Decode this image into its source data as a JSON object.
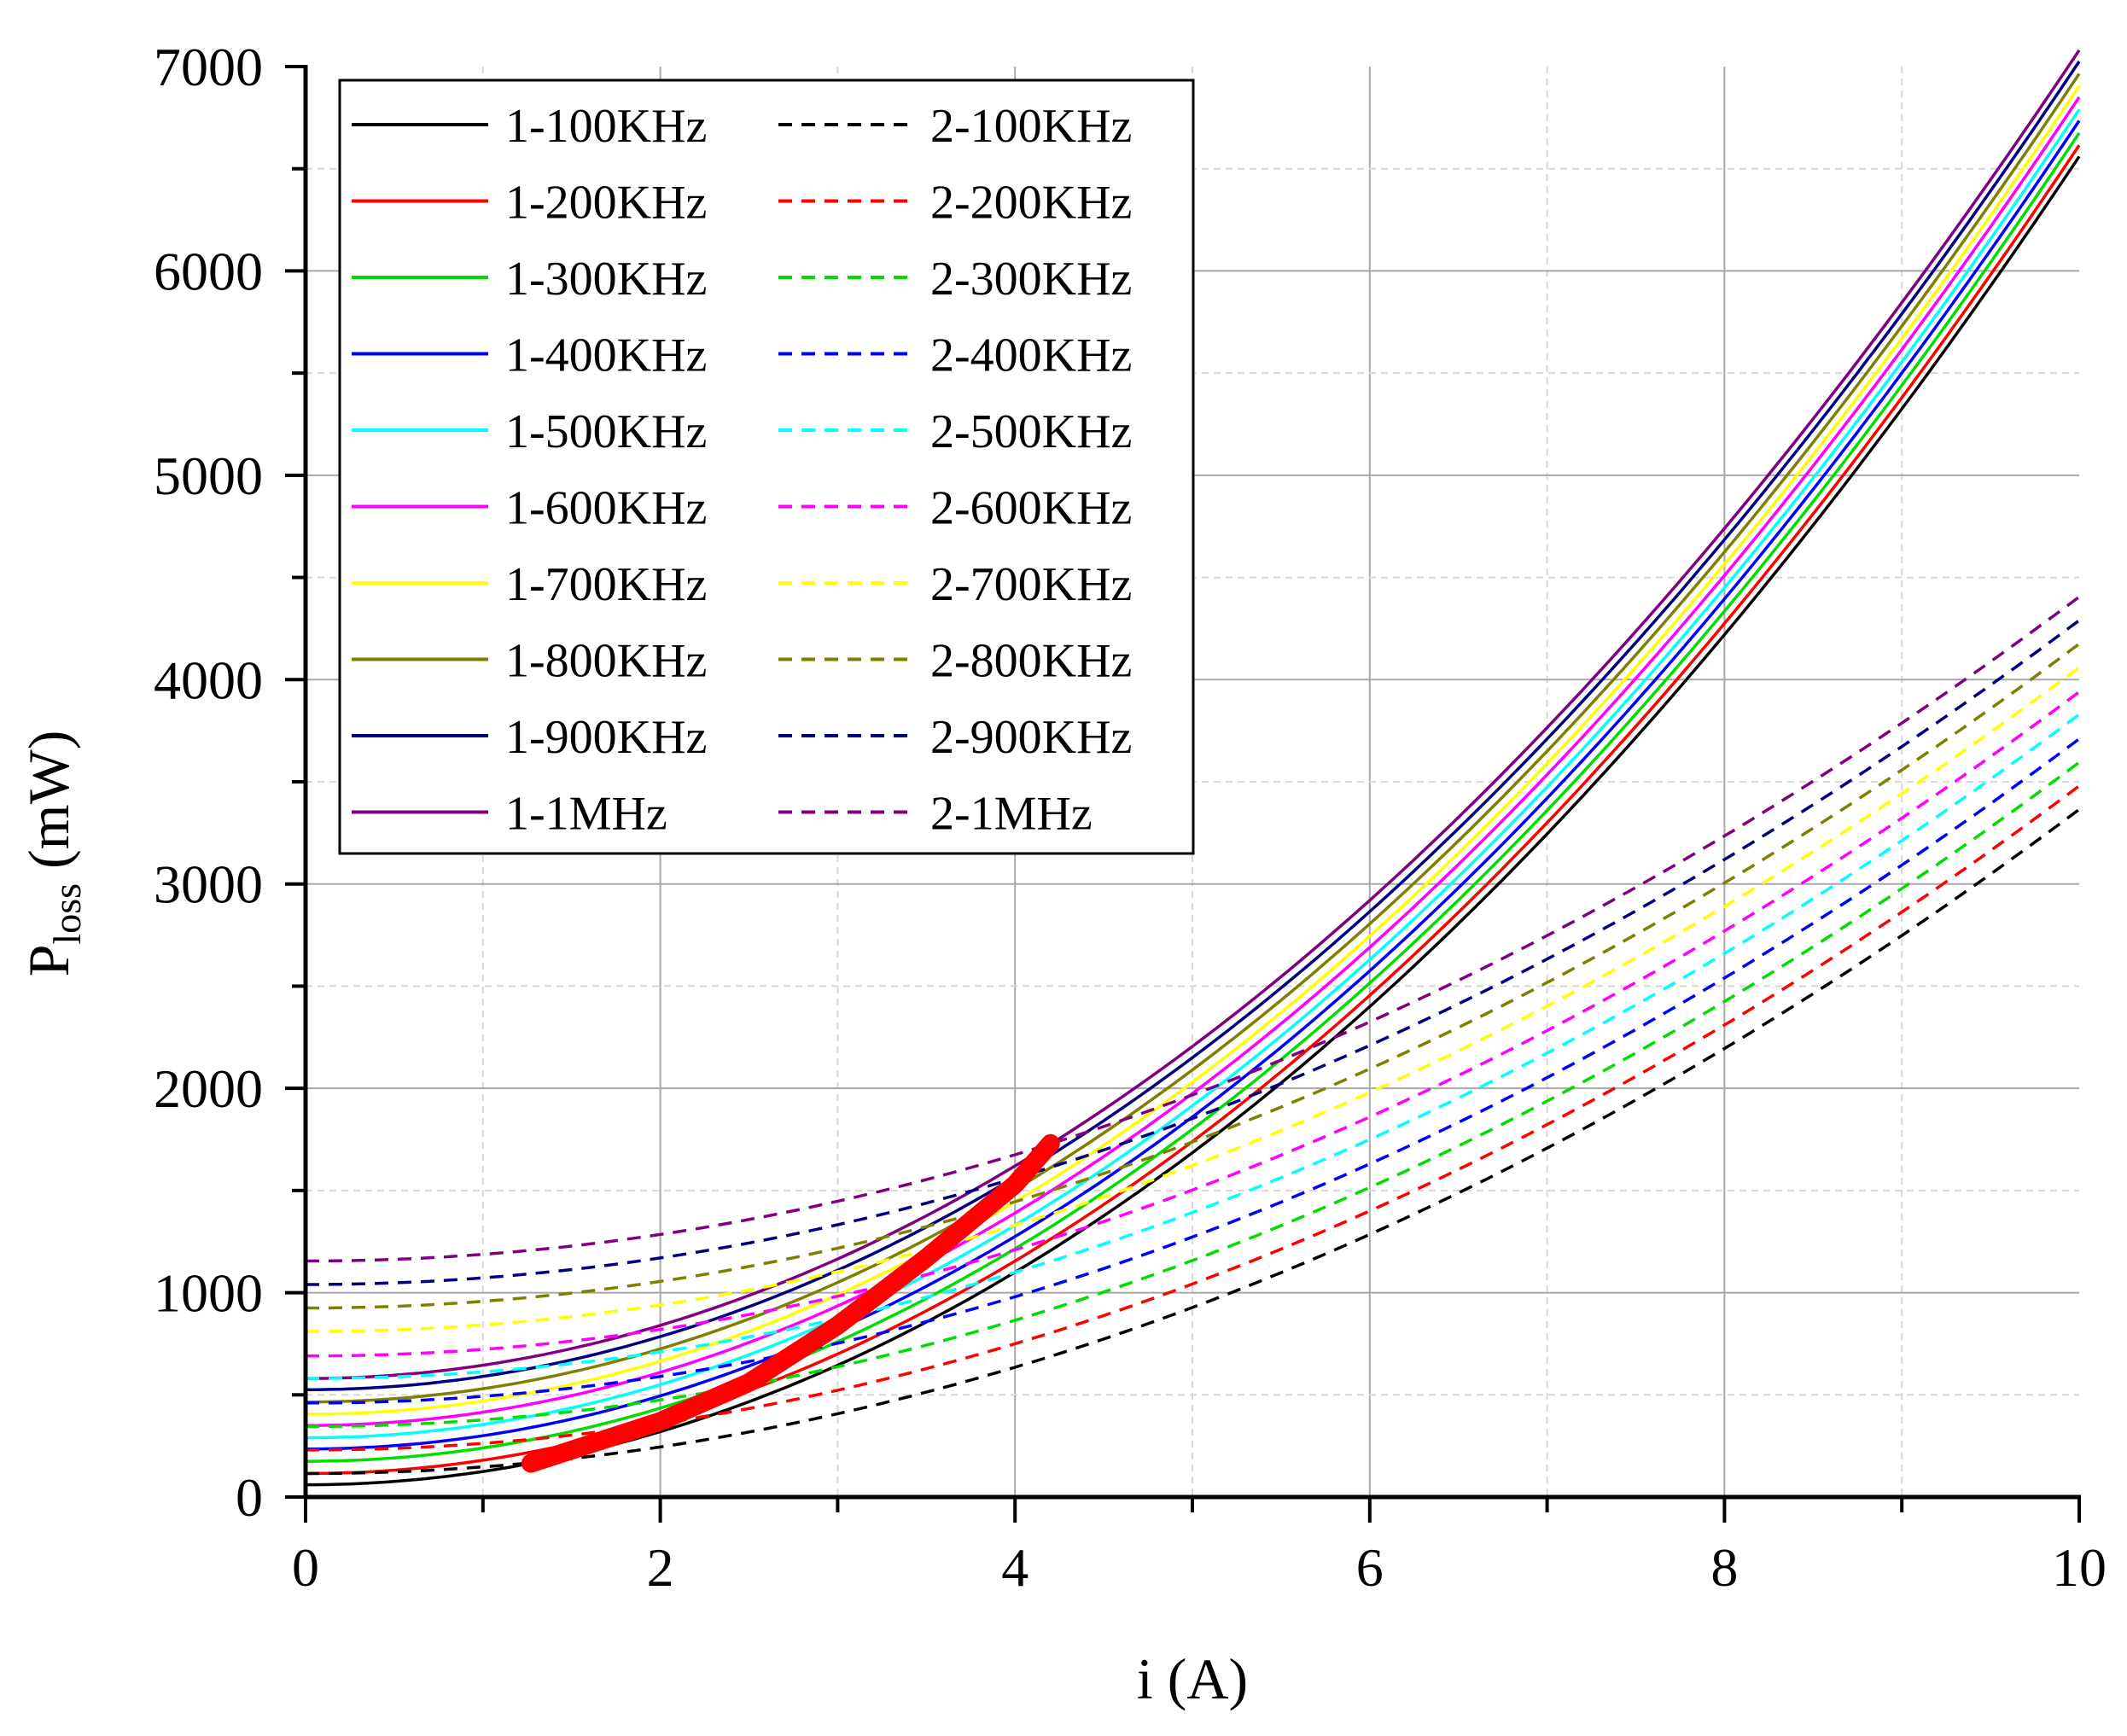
{
  "chart_data": {
    "type": "line",
    "xlabel": "i (A)",
    "ylabel_main": "P",
    "ylabel_sub": "loss",
    "ylabel_unit": " (mW)",
    "xlim": [
      0,
      10
    ],
    "ylim": [
      0,
      7000
    ],
    "xticks": [
      0,
      2,
      4,
      6,
      8,
      10
    ],
    "xtick_labels": [
      "0",
      "2",
      "4",
      "6",
      "8",
      "10"
    ],
    "yticks": [
      0,
      1000,
      2000,
      3000,
      4000,
      5000,
      6000,
      7000
    ],
    "ytick_labels": [
      "0",
      "1000",
      "2000",
      "3000",
      "4000",
      "5000",
      "6000",
      "7000"
    ],
    "grid": true,
    "legend_position": "top-left",
    "series": [
      {
        "name": "1-100KHz",
        "group": 1,
        "style": "solid",
        "color": "#000000",
        "p0": 60,
        "k": 65
      },
      {
        "name": "1-200KHz",
        "group": 1,
        "style": "solid",
        "color": "#ff0000",
        "p0": 115,
        "k": 65
      },
      {
        "name": "1-300KHz",
        "group": 1,
        "style": "solid",
        "color": "#00dd00",
        "p0": 175,
        "k": 65
      },
      {
        "name": "1-400KHz",
        "group": 1,
        "style": "solid",
        "color": "#0000ff",
        "p0": 235,
        "k": 65
      },
      {
        "name": "1-500KHz",
        "group": 1,
        "style": "solid",
        "color": "#00ffff",
        "p0": 290,
        "k": 65
      },
      {
        "name": "1-600KHz",
        "group": 1,
        "style": "solid",
        "color": "#ff00ff",
        "p0": 350,
        "k": 65
      },
      {
        "name": "1-700KHz",
        "group": 1,
        "style": "solid",
        "color": "#ffff00",
        "p0": 405,
        "k": 65
      },
      {
        "name": "1-800KHz",
        "group": 1,
        "style": "solid",
        "color": "#808000",
        "p0": 465,
        "k": 65
      },
      {
        "name": "1-900KHz",
        "group": 1,
        "style": "solid",
        "color": "#000080",
        "p0": 525,
        "k": 65
      },
      {
        "name": "1-1MHz",
        "group": 1,
        "style": "solid",
        "color": "#800080",
        "p0": 580,
        "k": 65
      },
      {
        "name": "2-100KHz",
        "group": 2,
        "style": "dashed",
        "color": "#000000",
        "p0": 115,
        "k": 32.5
      },
      {
        "name": "2-200KHz",
        "group": 2,
        "style": "dashed",
        "color": "#ff0000",
        "p0": 230,
        "k": 32.5
      },
      {
        "name": "2-300KHz",
        "group": 2,
        "style": "dashed",
        "color": "#00dd00",
        "p0": 345,
        "k": 32.5
      },
      {
        "name": "2-400KHz",
        "group": 2,
        "style": "dashed",
        "color": "#0000ff",
        "p0": 460,
        "k": 32.5
      },
      {
        "name": "2-500KHz",
        "group": 2,
        "style": "dashed",
        "color": "#00ffff",
        "p0": 580,
        "k": 32.5
      },
      {
        "name": "2-600KHz",
        "group": 2,
        "style": "dashed",
        "color": "#ff00ff",
        "p0": 690,
        "k": 32.5
      },
      {
        "name": "2-700KHz",
        "group": 2,
        "style": "dashed",
        "color": "#ffff00",
        "p0": 810,
        "k": 32.5
      },
      {
        "name": "2-800KHz",
        "group": 2,
        "style": "dashed",
        "color": "#808000",
        "p0": 925,
        "k": 32.5
      },
      {
        "name": "2-900KHz",
        "group": 2,
        "style": "dashed",
        "color": "#000080",
        "p0": 1040,
        "k": 32.5
      },
      {
        "name": "2-1MHz",
        "group": 2,
        "style": "dashed",
        "color": "#800080",
        "p0": 1155,
        "k": 32.5
      }
    ],
    "highlight": {
      "color": "#ff0000",
      "points": [
        [
          1.27,
          165
        ],
        [
          2.0,
          370
        ],
        [
          2.5,
          560
        ],
        [
          3.0,
          840
        ],
        [
          3.5,
          1170
        ],
        [
          4.0,
          1530
        ],
        [
          4.2,
          1730
        ]
      ]
    }
  }
}
